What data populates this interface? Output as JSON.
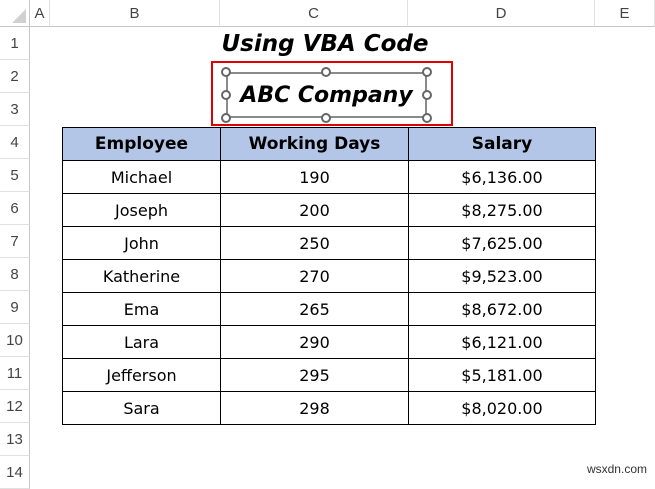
{
  "columns": [
    "A",
    "B",
    "C",
    "D",
    "E"
  ],
  "rows": [
    "1",
    "2",
    "3",
    "4",
    "5",
    "6",
    "7",
    "8",
    "9",
    "10",
    "11",
    "12",
    "13",
    "14"
  ],
  "title": "Using VBA Code",
  "textbox": "ABC Company",
  "table": {
    "headers": [
      "Employee",
      "Working Days",
      "Salary"
    ],
    "rows": [
      [
        "Michael",
        "190",
        "$6,136.00"
      ],
      [
        "Joseph",
        "200",
        "$8,275.00"
      ],
      [
        "John",
        "250",
        "$7,625.00"
      ],
      [
        "Katherine",
        "270",
        "$9,523.00"
      ],
      [
        "Ema",
        "265",
        "$8,672.00"
      ],
      [
        "Lara",
        "290",
        "$6,121.00"
      ],
      [
        "Jefferson",
        "295",
        "$5,181.00"
      ],
      [
        "Sara",
        "298",
        "$8,020.00"
      ]
    ]
  },
  "colors": {
    "header_fill": "#b4c6e7",
    "highlight": "#e00000"
  },
  "watermark": "wsxdn.com"
}
